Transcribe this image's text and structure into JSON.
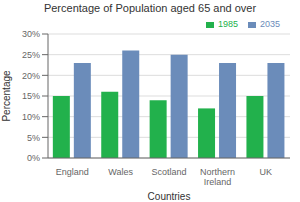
{
  "chart_data": {
    "type": "bar",
    "title": "Percentage of Population aged 65 and over",
    "xlabel": "Countries",
    "ylabel": "Percentage",
    "categories": [
      "England",
      "Wales",
      "Scotland",
      "Northern\nIreland",
      "UK"
    ],
    "series": [
      {
        "name": "1985",
        "color": "#22b14c",
        "values": [
          15,
          16,
          14,
          12,
          15
        ]
      },
      {
        "name": "2035",
        "color": "#6b8cba",
        "values": [
          23,
          26,
          25,
          23,
          23
        ]
      }
    ],
    "ylim": [
      0,
      30
    ],
    "yticks": [
      {
        "value": 0,
        "label": "0%"
      },
      {
        "value": 5,
        "label": "5%"
      },
      {
        "value": 10,
        "label": "10%"
      },
      {
        "value": 15,
        "label": "15%"
      },
      {
        "value": 20,
        "label": "20%"
      },
      {
        "value": 25,
        "label": "25%"
      },
      {
        "value": 30,
        "label": "30%"
      }
    ],
    "grid": true,
    "legend": "upper right"
  }
}
